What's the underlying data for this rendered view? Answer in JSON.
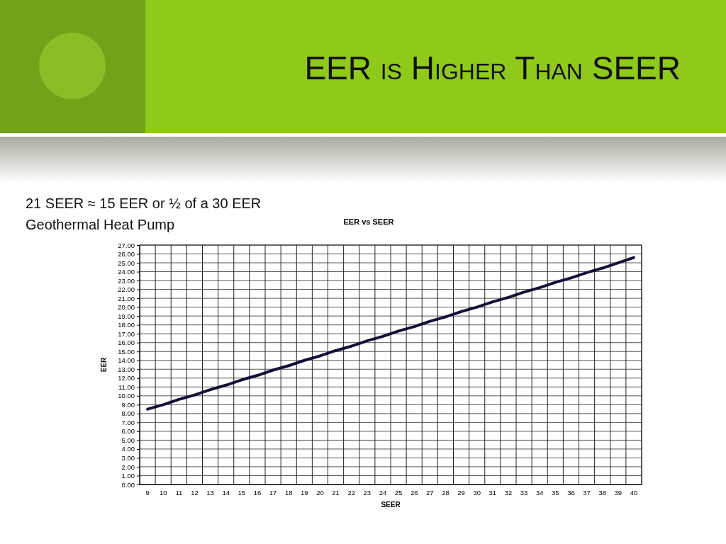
{
  "chart_data": {
    "type": "line",
    "title": "EER vs SEER",
    "subtitle": "EER is Higher Than SEER",
    "annotations": [
      "21 SEER ≈ 15 EER or ½ of a 30 EER Geothermal Heat Pump"
    ],
    "xlabel": "SEER",
    "ylabel": "EER",
    "categories": [
      "9",
      "10",
      "11",
      "12",
      "13",
      "14",
      "15",
      "16",
      "17",
      "18",
      "19",
      "20",
      "21",
      "22",
      "23",
      "24",
      "25",
      "26",
      "27",
      "28",
      "29",
      "30",
      "31",
      "32",
      "33",
      "34",
      "35",
      "36",
      "37",
      "38",
      "39",
      "40"
    ],
    "series": [
      {
        "color": "#10103a",
        "values": [
          8.5,
          9.0,
          9.6,
          10.1,
          10.7,
          11.2,
          11.8,
          12.3,
          12.9,
          13.4,
          14.0,
          14.5,
          15.1,
          15.6,
          16.2,
          16.7,
          17.3,
          17.8,
          18.4,
          18.9,
          19.5,
          20.0,
          20.6,
          21.1,
          21.7,
          22.2,
          22.8,
          23.3,
          23.9,
          24.4,
          25.0,
          25.6
        ]
      }
    ],
    "ylim": [
      0,
      27
    ],
    "yticks": [
      {
        "value": 0,
        "label": "0.00"
      },
      {
        "value": 1,
        "label": "1.00"
      },
      {
        "value": 2,
        "label": "2.00"
      },
      {
        "value": 3,
        "label": "3.00"
      },
      {
        "value": 4,
        "label": "4.00"
      },
      {
        "value": 5,
        "label": "5.00"
      },
      {
        "value": 6,
        "label": "6.00"
      },
      {
        "value": 7,
        "label": "7.00"
      },
      {
        "value": 8,
        "label": "8.00"
      },
      {
        "value": 9,
        "label": "9.00"
      },
      {
        "value": 10,
        "label": "10.00"
      },
      {
        "value": 11,
        "label": "11.00"
      },
      {
        "value": 12,
        "label": "12.00"
      },
      {
        "value": 13,
        "label": "13.00"
      },
      {
        "value": 14,
        "label": "14.00"
      },
      {
        "value": 15,
        "label": "15.00"
      },
      {
        "value": 16,
        "label": "16.00"
      },
      {
        "value": 17,
        "label": "17.00"
      },
      {
        "value": 18,
        "label": "18.00"
      },
      {
        "value": 19,
        "label": "19.00"
      },
      {
        "value": 20,
        "label": "20.00"
      },
      {
        "value": 21,
        "label": "21.00"
      },
      {
        "value": 22,
        "label": "22.00"
      },
      {
        "value": 23,
        "label": "23.00"
      },
      {
        "value": 24,
        "label": "24.00"
      },
      {
        "value": 25,
        "label": "25.00"
      },
      {
        "value": 26,
        "label": "26.00"
      },
      {
        "value": 27,
        "label": "27.00"
      }
    ],
    "grid": true,
    "marker": "none",
    "line_style": "solid"
  }
}
